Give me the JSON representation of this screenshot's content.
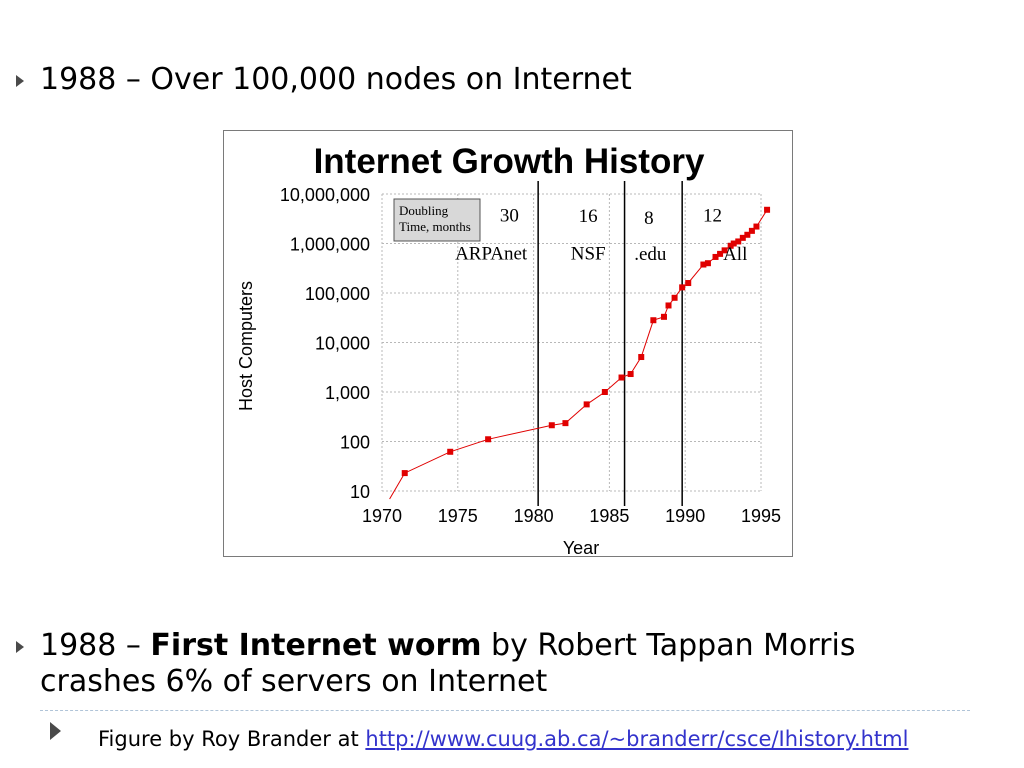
{
  "bullets": {
    "b1": "1988 – Over 100,000 nodes on Internet",
    "b2_pre": "1988 – ",
    "b2_strong": "First Internet worm",
    "b2_post": " by Robert Tappan Morris crashes 6% of servers on Internet",
    "note_pre": "Figure by Roy Brander at ",
    "note_link": "http://www.cuug.ab.ca/~branderr/csce/Ihistory.html"
  },
  "chart_data": {
    "type": "line",
    "title": "Internet Growth History",
    "xlabel": "Year",
    "ylabel": "Host Computers",
    "xlim": [
      1970,
      1995
    ],
    "ylim": [
      10,
      10000000
    ],
    "y_scale": "log",
    "x_ticks": [
      "1970",
      "1975",
      "1980",
      "1985",
      "1990",
      "1995"
    ],
    "y_ticks": [
      "10,000,000",
      "1,000,000",
      "100,000",
      "10,000",
      "1,000",
      "100",
      "10"
    ],
    "grid": true,
    "series": [
      {
        "color": "#e00000",
        "x": [
          1971.5,
          1974.5,
          1977,
          1981.2,
          1982.1,
          1983.5,
          1984.7,
          1985.8,
          1986.4,
          1987.1,
          1987.9,
          1988.6,
          1988.9,
          1989.3,
          1989.8,
          1990.2,
          1991.2,
          1991.5,
          1992,
          1992.3,
          1992.6,
          1993,
          1993.2,
          1993.5,
          1993.8,
          1994.1,
          1994.4,
          1994.7,
          1995.4
        ],
        "y": [
          23,
          62,
          111,
          213,
          235,
          562,
          1000,
          1961,
          2308,
          5089,
          28174,
          33000,
          56000,
          80000,
          130000,
          159000,
          376000,
          400000,
          535000,
          617000,
          727000,
          900000,
          1000000,
          1100000,
          1300000,
          1500000,
          1800000,
          2200000,
          4800000
        ]
      }
    ],
    "dividers": [
      1980.3,
      1986,
      1989.8
    ],
    "legend_box": [
      "Doubling",
      "Time, months"
    ],
    "annotations": [
      {
        "label": "30",
        "x": 1978.4,
        "y": 2800000
      },
      {
        "label": "16",
        "x": 1983.6,
        "y": 2700000
      },
      {
        "label": "8",
        "x": 1987.6,
        "y": 2500000
      },
      {
        "label": "12",
        "x": 1991.8,
        "y": 2800000
      },
      {
        "label": "ARPAnet",
        "x": 1977.2,
        "y": 480000
      },
      {
        "label": "NSF",
        "x": 1983.6,
        "y": 480000
      },
      {
        "label": ".edu",
        "x": 1987.7,
        "y": 460000
      },
      {
        "label": "All",
        "x": 1993.3,
        "y": 460000
      }
    ]
  }
}
